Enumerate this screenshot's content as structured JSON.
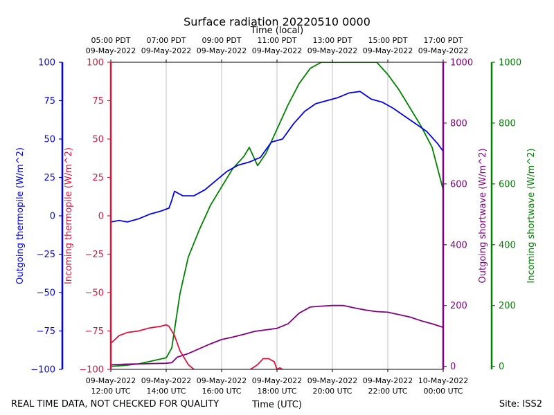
{
  "chart_data": {
    "type": "line",
    "title": "Surface radiation 20220510 0000",
    "top_axis_title": "Time (local)",
    "xlabel": "Time (UTC)",
    "footer_left": "REAL TIME DATA, NOT CHECKED FOR QUALITY",
    "footer_right": "Site: ISS2",
    "x_range_hours_utc": [
      12,
      24
    ],
    "bottom_ticks": [
      {
        "hour": 12,
        "line1": "09-May-2022",
        "line2": "12:00 UTC"
      },
      {
        "hour": 14,
        "line1": "09-May-2022",
        "line2": "14:00 UTC"
      },
      {
        "hour": 16,
        "line1": "09-May-2022",
        "line2": "16:00 UTC"
      },
      {
        "hour": 18,
        "line1": "09-May-2022",
        "line2": "18:00 UTC"
      },
      {
        "hour": 20,
        "line1": "09-May-2022",
        "line2": "20:00 UTC"
      },
      {
        "hour": 22,
        "line1": "09-May-2022",
        "line2": "22:00 UTC"
      },
      {
        "hour": 24,
        "line1": "10-May-2022",
        "line2": "00:00 UTC"
      }
    ],
    "top_ticks": [
      {
        "hour": 12,
        "line1": "05:00 PDT",
        "line2": "09-May-2022"
      },
      {
        "hour": 14,
        "line1": "07:00 PDT",
        "line2": "09-May-2022"
      },
      {
        "hour": 16,
        "line1": "09:00 PDT",
        "line2": "09-May-2022"
      },
      {
        "hour": 18,
        "line1": "11:00 PDT",
        "line2": "09-May-2022"
      },
      {
        "hour": 20,
        "line1": "13:00 PDT",
        "line2": "09-May-2022"
      },
      {
        "hour": 22,
        "line1": "15:00 PDT",
        "line2": "09-May-2022"
      },
      {
        "hour": 24,
        "line1": "17:00 PDT",
        "line2": "09-May-2022"
      }
    ],
    "grid_hours": [
      14,
      16,
      18,
      20,
      22
    ],
    "axes": [
      {
        "id": "thermo",
        "label": "Outgoing thermopile (W/m^2)",
        "color": "#0000ee",
        "range": [
          -100,
          100
        ],
        "ticks": [
          -100,
          -75,
          -50,
          -25,
          0,
          25,
          50,
          75,
          100
        ]
      },
      {
        "id": "thermo_in",
        "label": "Incoming thermopile (W/m^2)",
        "color": "#dc143c",
        "range": [
          -100,
          100
        ],
        "ticks": [
          -100,
          -75,
          -50,
          -25,
          0,
          25,
          50,
          75,
          100
        ]
      },
      {
        "id": "sw_out",
        "label": "Outgoing shortwave (W/m^2)",
        "color": "#800080",
        "range": [
          -10,
          1000
        ],
        "ticks": [
          0,
          200,
          400,
          600,
          800,
          1000
        ]
      },
      {
        "id": "sw_in",
        "label": "Incoming shortwave (W/m^2)",
        "color": "#008000",
        "range": [
          -10,
          1000
        ],
        "ticks": [
          0,
          200,
          400,
          600,
          800,
          1000
        ]
      }
    ],
    "series": [
      {
        "name": "Outgoing thermopile",
        "axis": "thermo",
        "color": "#0000ee",
        "x": [
          12.0,
          12.3,
          12.6,
          13.0,
          13.4,
          13.8,
          14.1,
          14.2,
          14.3,
          14.6,
          15.0,
          15.4,
          15.8,
          16.2,
          16.6,
          17.0,
          17.4,
          17.8,
          18.2,
          18.6,
          19.0,
          19.4,
          19.8,
          20.2,
          20.6,
          21.0,
          21.4,
          21.8,
          22.2,
          22.6,
          23.0,
          23.4,
          23.8,
          24.0
        ],
        "y": [
          -4,
          -3,
          -4,
          -2,
          1,
          3,
          5,
          10,
          16,
          13,
          13,
          17,
          23,
          29,
          33,
          35,
          38,
          48,
          50,
          60,
          68,
          73,
          75,
          77,
          80,
          81,
          76,
          74,
          70,
          65,
          60,
          55,
          47,
          42
        ]
      },
      {
        "name": "Incoming thermopile",
        "axis": "thermo_in",
        "color": "#dc143c",
        "x": [
          12.0,
          12.3,
          12.6,
          13.0,
          13.4,
          13.8,
          14.0,
          14.1,
          14.3,
          14.5,
          14.8,
          15.0,
          15.01,
          17.0,
          17.3,
          17.5,
          17.7,
          17.9,
          18.0,
          18.1,
          18.2
        ],
        "y": [
          -83,
          -78,
          -76,
          -75,
          -73,
          -72,
          -71,
          -72,
          -78,
          -88,
          -97,
          -100,
          -100.5,
          -100.5,
          -97,
          -93,
          -93,
          -95,
          -100,
          -99,
          -100
        ]
      },
      {
        "name": "Outgoing shortwave",
        "axis": "sw_out",
        "color": "#800080",
        "x": [
          12.0,
          12.5,
          13.0,
          13.5,
          14.0,
          14.2,
          14.4,
          14.8,
          15.2,
          15.6,
          16.0,
          16.4,
          16.8,
          17.2,
          17.6,
          18.0,
          18.4,
          18.8,
          19.2,
          19.6,
          20.0,
          20.4,
          20.8,
          21.2,
          21.6,
          22.0,
          22.4,
          22.8,
          23.2,
          23.6,
          24.0
        ],
        "y": [
          5,
          7,
          8,
          9,
          10,
          12,
          30,
          42,
          58,
          74,
          88,
          96,
          105,
          115,
          120,
          125,
          140,
          175,
          195,
          198,
          200,
          200,
          192,
          185,
          180,
          178,
          170,
          162,
          150,
          140,
          128
        ]
      },
      {
        "name": "Incoming shortwave",
        "axis": "sw_in",
        "color": "#008000",
        "x": [
          12.0,
          12.5,
          13.0,
          13.5,
          14.0,
          14.2,
          14.5,
          14.8,
          15.2,
          15.6,
          16.0,
          16.4,
          16.8,
          17.0,
          17.3,
          17.6,
          18.0,
          18.4,
          18.8,
          19.2,
          19.6,
          20.0,
          20.4,
          20.8,
          21.2,
          21.6,
          22.0,
          22.4,
          22.8,
          23.2,
          23.6,
          24.0
        ],
        "y": [
          0,
          3,
          8,
          18,
          28,
          60,
          240,
          360,
          450,
          530,
          590,
          650,
          690,
          720,
          660,
          700,
          780,
          860,
          930,
          980,
          1000,
          1000,
          1000,
          1000,
          1000,
          1000,
          960,
          910,
          850,
          790,
          720,
          580
        ]
      }
    ]
  }
}
